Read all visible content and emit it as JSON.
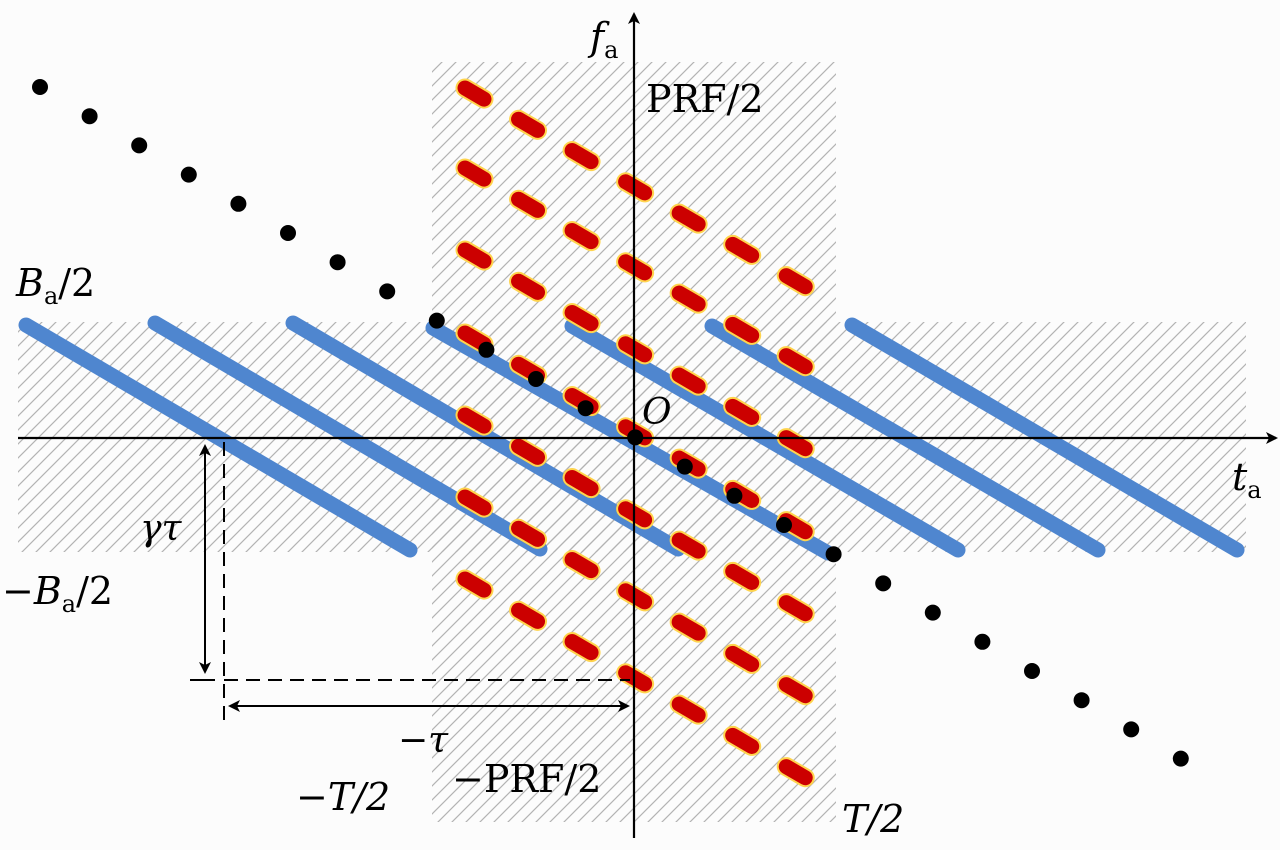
{
  "labels": {
    "fa_main": "f",
    "fa_sub": "a",
    "ta_main": "t",
    "ta_sub": "a",
    "prf_top": "PRF/2",
    "prf_bottom": "−PRF/2",
    "ba_top_main": "B",
    "ba_top_sub": "a",
    "ba_top_rest": "/2",
    "ba_bottom_minus": "−",
    "ba_bottom_main": "B",
    "ba_bottom_sub": "a",
    "ba_bottom_rest": "/2",
    "origin": "O",
    "gamma_tau": "γτ",
    "minus_tau": "−τ",
    "minus_T_half": "−T/2",
    "T_half": "T/2"
  },
  "colors": {
    "background": "#fcfcfc",
    "blue_lines": "#4f86cf",
    "red_dashes": "#cc0000",
    "red_dash_edge": "#ffd44d",
    "dots": "#000000",
    "hatch": "#b3b3b3",
    "axis": "#000000"
  }
}
